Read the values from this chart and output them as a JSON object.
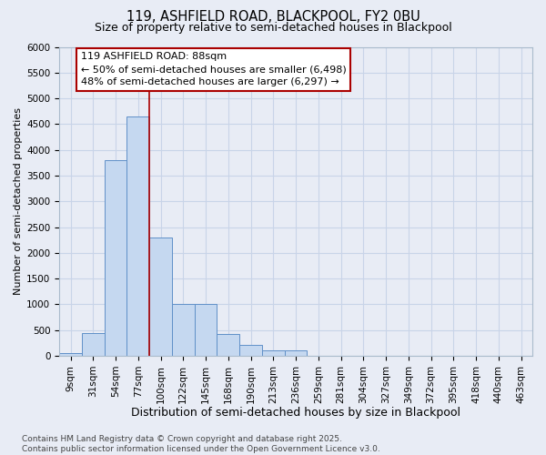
{
  "title1": "119, ASHFIELD ROAD, BLACKPOOL, FY2 0BU",
  "title2": "Size of property relative to semi-detached houses in Blackpool",
  "xlabel": "Distribution of semi-detached houses by size in Blackpool",
  "ylabel": "Number of semi-detached properties",
  "categories": [
    "9sqm",
    "31sqm",
    "54sqm",
    "77sqm",
    "100sqm",
    "122sqm",
    "145sqm",
    "168sqm",
    "190sqm",
    "213sqm",
    "236sqm",
    "259sqm",
    "281sqm",
    "304sqm",
    "327sqm",
    "349sqm",
    "372sqm",
    "395sqm",
    "418sqm",
    "440sqm",
    "463sqm"
  ],
  "values": [
    50,
    450,
    3800,
    4650,
    2300,
    1000,
    1000,
    430,
    220,
    110,
    110,
    0,
    0,
    0,
    0,
    0,
    0,
    0,
    0,
    0,
    0
  ],
  "bar_color": "#c5d8f0",
  "bar_edge_color": "#6090c8",
  "vline_pos": 3.5,
  "vline_color": "#aa0000",
  "annotation_text": "119 ASHFIELD ROAD: 88sqm\n← 50% of semi-detached houses are smaller (6,498)\n48% of semi-detached houses are larger (6,297) →",
  "annotation_box_facecolor": "#ffffff",
  "annotation_box_edgecolor": "#aa0000",
  "ylim_max": 6000,
  "yticks": [
    0,
    500,
    1000,
    1500,
    2000,
    2500,
    3000,
    3500,
    4000,
    4500,
    5000,
    5500,
    6000
  ],
  "grid_color": "#c8d4e8",
  "bg_color": "#e8ecf5",
  "footnote": "Contains HM Land Registry data © Crown copyright and database right 2025.\nContains public sector information licensed under the Open Government Licence v3.0.",
  "title1_fontsize": 10.5,
  "title2_fontsize": 9,
  "xlabel_fontsize": 9,
  "ylabel_fontsize": 8,
  "tick_fontsize": 7.5,
  "annotation_fontsize": 8,
  "footnote_fontsize": 6.5
}
